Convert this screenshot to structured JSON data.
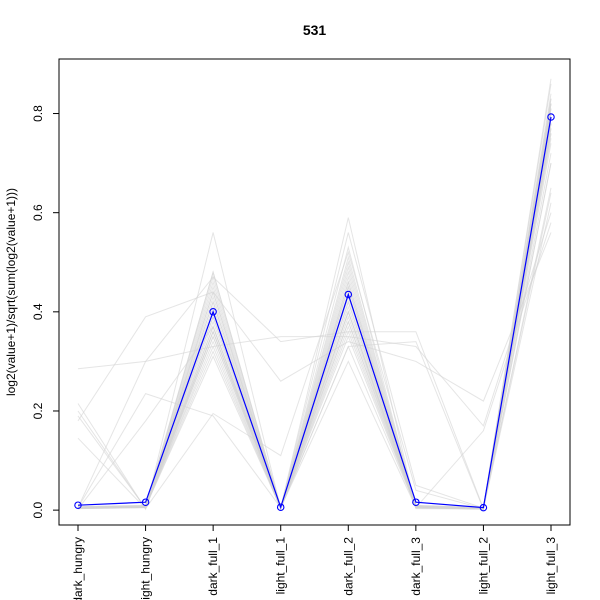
{
  "chart_data": {
    "type": "line",
    "title": "531",
    "xlabel": "",
    "ylabel": "log2(value+1)/sqrt(sum(log2(value+1)))",
    "categories": [
      "dark_hungry",
      "light_hungry",
      "dark_full_1",
      "light_full_1",
      "dark_full_2",
      "dark_full_3",
      "light_full_2",
      "light_full_3"
    ],
    "ylim": [
      -0.03,
      0.91
    ],
    "yticks": [
      "0.0",
      "0.2",
      "0.4",
      "0.6",
      "0.8"
    ],
    "highlight_series": {
      "color": "#0000ff",
      "values": [
        0.01,
        0.016,
        0.4,
        0.006,
        0.435,
        0.016,
        0.005,
        0.793
      ]
    },
    "background_series_color": "#d3d3d3",
    "background_series": [
      {
        "values": [
          0.005,
          0.008,
          0.33,
          0.004,
          0.36,
          0.008,
          0.003,
          0.84
        ]
      },
      {
        "values": [
          0.004,
          0.006,
          0.35,
          0.003,
          0.38,
          0.006,
          0.002,
          0.82
        ]
      },
      {
        "values": [
          0.006,
          0.009,
          0.37,
          0.005,
          0.4,
          0.009,
          0.004,
          0.81
        ]
      },
      {
        "values": [
          0.003,
          0.005,
          0.42,
          0.002,
          0.45,
          0.005,
          0.002,
          0.78
        ]
      },
      {
        "values": [
          0.005,
          0.007,
          0.44,
          0.004,
          0.47,
          0.007,
          0.003,
          0.77
        ]
      },
      {
        "values": [
          0.004,
          0.006,
          0.46,
          0.003,
          0.49,
          0.006,
          0.003,
          0.76
        ]
      },
      {
        "values": [
          0.006,
          0.008,
          0.48,
          0.005,
          0.51,
          0.008,
          0.004,
          0.74
        ]
      },
      {
        "values": [
          0.005,
          0.007,
          0.32,
          0.004,
          0.35,
          0.007,
          0.003,
          0.86
        ]
      },
      {
        "values": [
          0.007,
          0.01,
          0.36,
          0.006,
          0.42,
          0.01,
          0.005,
          0.8
        ]
      },
      {
        "values": [
          0.004,
          0.006,
          0.39,
          0.003,
          0.44,
          0.006,
          0.002,
          0.79
        ]
      },
      {
        "values": [
          0.005,
          0.008,
          0.41,
          0.004,
          0.43,
          0.008,
          0.003,
          0.8
        ]
      },
      {
        "values": [
          0.006,
          0.009,
          0.43,
          0.005,
          0.46,
          0.009,
          0.004,
          0.78
        ]
      },
      {
        "values": [
          0.003,
          0.005,
          0.34,
          0.002,
          0.37,
          0.005,
          0.002,
          0.83
        ]
      },
      {
        "values": [
          0.005,
          0.007,
          0.38,
          0.004,
          0.41,
          0.007,
          0.003,
          0.81
        ]
      },
      {
        "values": [
          0.004,
          0.006,
          0.45,
          0.003,
          0.48,
          0.006,
          0.002,
          0.76
        ]
      },
      {
        "values": [
          0.006,
          0.008,
          0.47,
          0.005,
          0.5,
          0.008,
          0.004,
          0.75
        ]
      },
      {
        "values": [
          0.005,
          0.007,
          0.31,
          0.004,
          0.33,
          0.007,
          0.003,
          0.87
        ]
      },
      {
        "values": [
          0.004,
          0.006,
          0.4,
          0.003,
          0.53,
          0.006,
          0.002,
          0.72
        ]
      },
      {
        "values": [
          0.005,
          0.008,
          0.36,
          0.004,
          0.39,
          0.008,
          0.003,
          0.82
        ]
      },
      {
        "values": [
          0.006,
          0.009,
          0.42,
          0.005,
          0.45,
          0.009,
          0.004,
          0.79
        ]
      },
      {
        "values": [
          0.004,
          0.007,
          0.37,
          0.003,
          0.4,
          0.007,
          0.002,
          0.82
        ]
      },
      {
        "values": [
          0.005,
          0.006,
          0.44,
          0.004,
          0.46,
          0.006,
          0.003,
          0.77
        ]
      },
      {
        "values": [
          0.003,
          0.008,
          0.39,
          0.002,
          0.42,
          0.008,
          0.003,
          0.8
        ]
      },
      {
        "values": [
          0.007,
          0.009,
          0.35,
          0.006,
          0.38,
          0.009,
          0.005,
          0.83
        ]
      },
      {
        "values": [
          0.145,
          0.003,
          0.36,
          0.002,
          0.4,
          0.003,
          0.002,
          0.78
        ]
      },
      {
        "values": [
          0.285,
          0.3,
          0.33,
          0.35,
          0.35,
          0.33,
          0.17,
          0.6
        ]
      },
      {
        "values": [
          0.215,
          0.002,
          0.56,
          0.004,
          0.59,
          0.004,
          0.003,
          0.7
        ]
      },
      {
        "values": [
          0.18,
          0.39,
          0.44,
          0.26,
          0.34,
          0.3,
          0.22,
          0.56
        ]
      },
      {
        "values": [
          0.005,
          0.3,
          0.47,
          0.34,
          0.36,
          0.36,
          0.003,
          0.7
        ]
      },
      {
        "values": [
          0.2,
          0.003,
          0.195,
          0.11,
          0.52,
          0.04,
          0.003,
          0.65
        ]
      },
      {
        "values": [
          0.005,
          0.235,
          0.19,
          0.005,
          0.3,
          0.005,
          0.16,
          0.58
        ]
      },
      {
        "values": [
          0.002,
          0.18,
          0.37,
          0.003,
          0.33,
          0.34,
          0.002,
          0.62
        ]
      },
      {
        "values": [
          0.19,
          0.004,
          0.48,
          0.004,
          0.56,
          0.05,
          0.004,
          0.64
        ]
      }
    ]
  }
}
